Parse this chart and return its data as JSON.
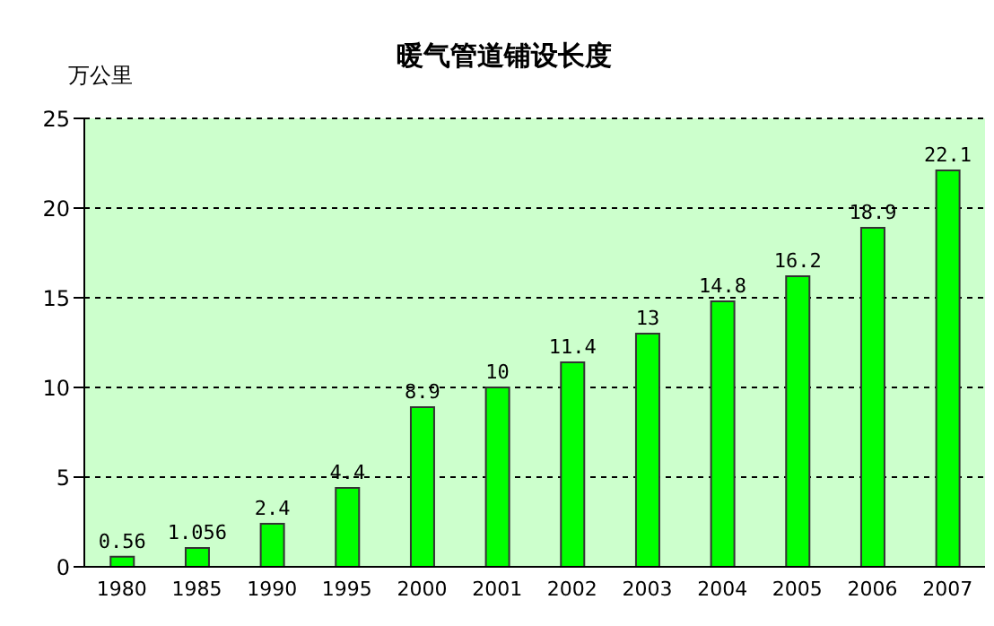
{
  "chart_data": {
    "type": "bar",
    "title": "暖气管道铺设长度",
    "ylabel": "万公里",
    "categories": [
      "1980",
      "1985",
      "1990",
      "1995",
      "2000",
      "2001",
      "2002",
      "2003",
      "2004",
      "2005",
      "2006",
      "2007"
    ],
    "values": [
      0.56,
      1.056,
      2.4,
      4.4,
      8.9,
      10,
      11.4,
      13,
      14.8,
      16.2,
      18.9,
      22.1
    ],
    "color": "#00ff00",
    "ylim": [
      0,
      25
    ],
    "yticks": [
      0,
      5,
      10,
      15,
      20,
      25
    ],
    "grid": "y",
    "data_labels": true
  }
}
